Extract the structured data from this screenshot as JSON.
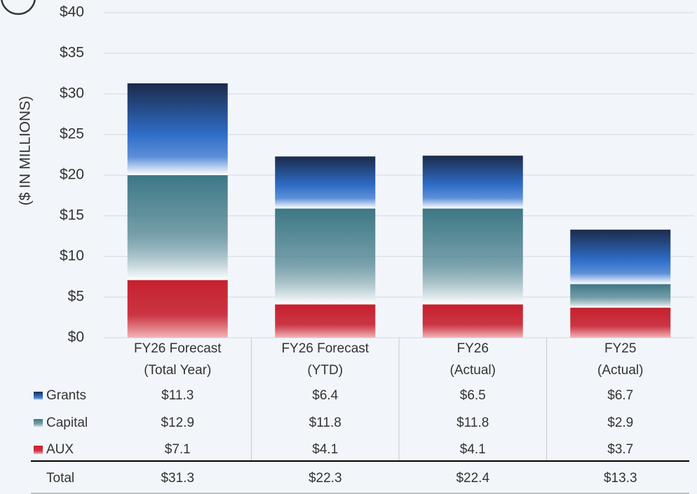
{
  "chart_data": {
    "type": "stacked_bar",
    "y_label": "($ IN MILLIONS)",
    "categories": [
      [
        "FY26 Forecast",
        "(Total Year)"
      ],
      [
        "FY26 Forecast",
        "(YTD)"
      ],
      [
        "FY26",
        "(Actual)"
      ],
      [
        "FY25",
        "(Actual)"
      ]
    ],
    "series": [
      {
        "name": "Grants",
        "color": "#1c2b4b",
        "values": [
          11.3,
          6.4,
          6.5,
          6.7
        ],
        "value_labels": [
          "$11.3",
          "$6.4",
          "$6.5",
          "$6.7"
        ]
      },
      {
        "name": "Capital",
        "color": "#3d7785",
        "values": [
          12.9,
          11.8,
          11.8,
          2.9
        ],
        "value_labels": [
          "$12.9",
          "$11.8",
          "$11.8",
          "$2.9"
        ]
      },
      {
        "name": "AUX",
        "color": "#c6202e",
        "values": [
          7.1,
          4.1,
          4.1,
          3.7
        ],
        "value_labels": [
          "$7.1",
          "$4.1",
          "$4.1",
          "$3.7"
        ]
      }
    ],
    "total_row": {
      "name": "Total",
      "labels": [
        "$31.3",
        "$22.3",
        "$22.4",
        "$13.3"
      ]
    },
    "ylim": [
      0,
      40
    ],
    "yticks": [
      {
        "value": 0,
        "label": "$0"
      },
      {
        "value": 5,
        "label": "$5"
      },
      {
        "value": 10,
        "label": "$10"
      },
      {
        "value": 15,
        "label": "$15"
      },
      {
        "value": 20,
        "label": "$20"
      },
      {
        "value": 25,
        "label": "$25"
      },
      {
        "value": 30,
        "label": "$30"
      },
      {
        "value": 35,
        "label": "$35"
      },
      {
        "value": 40,
        "label": "$40"
      }
    ],
    "grid": true
  }
}
